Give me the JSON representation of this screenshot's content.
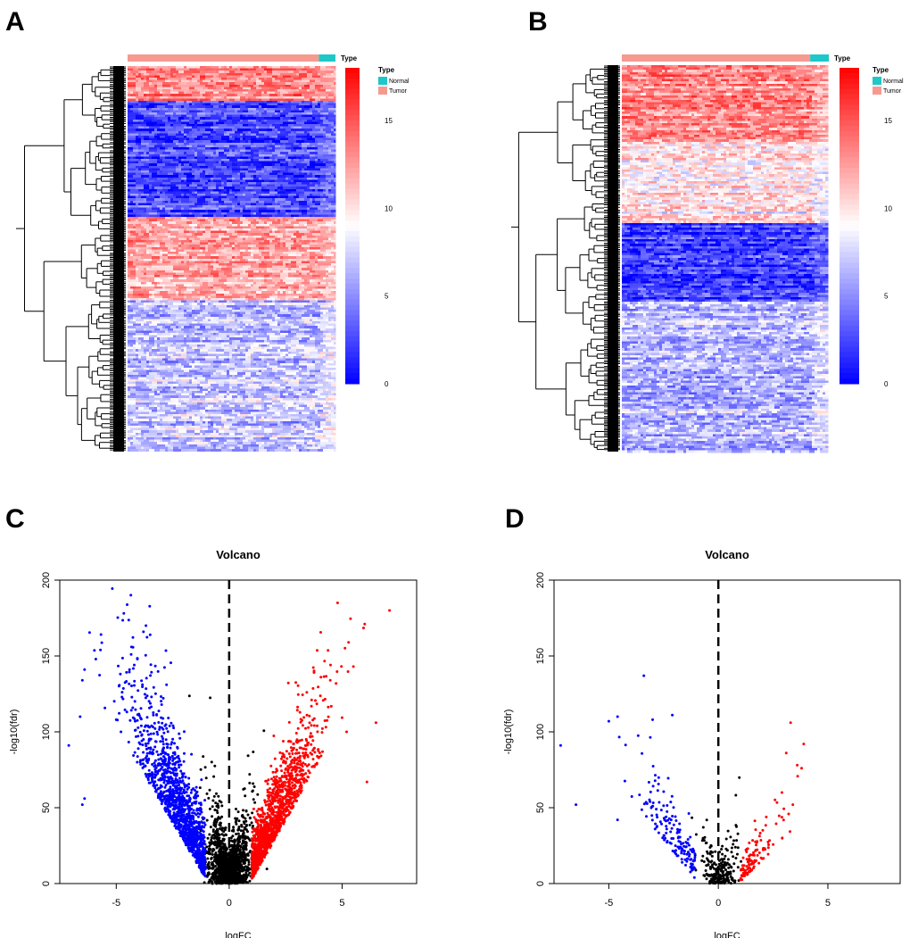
{
  "panels": {
    "a": "A",
    "b": "B",
    "c": "C",
    "d": "D"
  },
  "colors": {
    "normal": "#1ec8c8",
    "tumor": "#f69a90",
    "low": "#0000ff",
    "mid": "#ffffff",
    "high": "#ff0000",
    "up": "#ff0000",
    "down": "#0000ff",
    "ns": "#000000"
  },
  "chart_data": [
    {
      "type": "heatmap",
      "panel": "A",
      "annotation_title": "Type",
      "legend": {
        "title": "Type",
        "entries": [
          "Normal",
          "Tumor"
        ]
      },
      "colorbar_ticks": [
        "15",
        "10",
        "5",
        "0"
      ],
      "colorbar_range": [
        0,
        18
      ],
      "column_groups": [
        {
          "name": "Tumor",
          "fraction": 0.92
        },
        {
          "name": "Normal",
          "fraction": 0.08
        }
      ],
      "row_blocks": [
        {
          "share": 0.09,
          "level": 13.5
        },
        {
          "share": 0.3,
          "level": 2.5
        },
        {
          "share": 0.22,
          "level": 12
        },
        {
          "share": 0.39,
          "level": 7
        }
      ]
    },
    {
      "type": "heatmap",
      "panel": "B",
      "annotation_title": "Type",
      "legend": {
        "title": "Type",
        "entries": [
          "Normal",
          "Tumor"
        ]
      },
      "colorbar_ticks": [
        "15",
        "10",
        "5",
        "0"
      ],
      "colorbar_range": [
        0,
        18
      ],
      "column_groups": [
        {
          "name": "Tumor",
          "fraction": 0.91
        },
        {
          "name": "Normal",
          "fraction": 0.09
        }
      ],
      "row_blocks": [
        {
          "share": 0.2,
          "level": 13
        },
        {
          "share": 0.21,
          "level": 9.5
        },
        {
          "share": 0.2,
          "level": 2
        },
        {
          "share": 0.39,
          "level": 6.5
        }
      ]
    },
    {
      "type": "scatter",
      "panel": "C",
      "title": "Volcano",
      "xlabel": "logFC",
      "ylabel": "-log10(fdr)",
      "xlim": [
        -7.5,
        8.3
      ],
      "ylim": [
        0,
        200
      ],
      "xticks": [
        -5,
        0,
        5
      ],
      "yticks": [
        0,
        50,
        100,
        150,
        200
      ],
      "threshold_line_x": 0,
      "n_down": 1300,
      "n_up": 1300,
      "n_ns": 1600,
      "outliers": [
        [
          4.8,
          185
        ],
        [
          6.0,
          171
        ],
        [
          7.1,
          180
        ],
        [
          5.5,
          143
        ],
        [
          6.5,
          106
        ],
        [
          -3.5,
          164
        ],
        [
          -5.7,
          154
        ],
        [
          -6.5,
          134
        ],
        [
          -7.1,
          91
        ],
        [
          5.2,
          100
        ],
        [
          -6.4,
          141
        ],
        [
          -6.6,
          110
        ],
        [
          -6.4,
          56
        ],
        [
          -6.5,
          52
        ],
        [
          6.1,
          67
        ]
      ]
    },
    {
      "type": "scatter",
      "panel": "D",
      "title": "Volcano",
      "xlabel": "logFC",
      "ylabel": "-log10(fdr)",
      "xlim": [
        -7.5,
        8.3
      ],
      "ylim": [
        0,
        200
      ],
      "xticks": [
        -5,
        0,
        5
      ],
      "yticks": [
        0,
        50,
        100,
        150,
        200
      ],
      "threshold_line_x": 0,
      "n_down": 160,
      "n_up": 110,
      "n_ns": 220,
      "outliers": [
        [
          -3.4,
          137
        ],
        [
          -5.0,
          107
        ],
        [
          -4.6,
          110
        ],
        [
          -7.2,
          91
        ],
        [
          -6.5,
          52
        ],
        [
          3.3,
          106
        ],
        [
          3.9,
          92
        ],
        [
          3.6,
          78
        ],
        [
          3.1,
          86
        ],
        [
          -4.6,
          42
        ],
        [
          -2.1,
          111
        ],
        [
          -3.0,
          108
        ],
        [
          3.8,
          76
        ],
        [
          2.9,
          60
        ],
        [
          3.4,
          52
        ]
      ]
    }
  ]
}
